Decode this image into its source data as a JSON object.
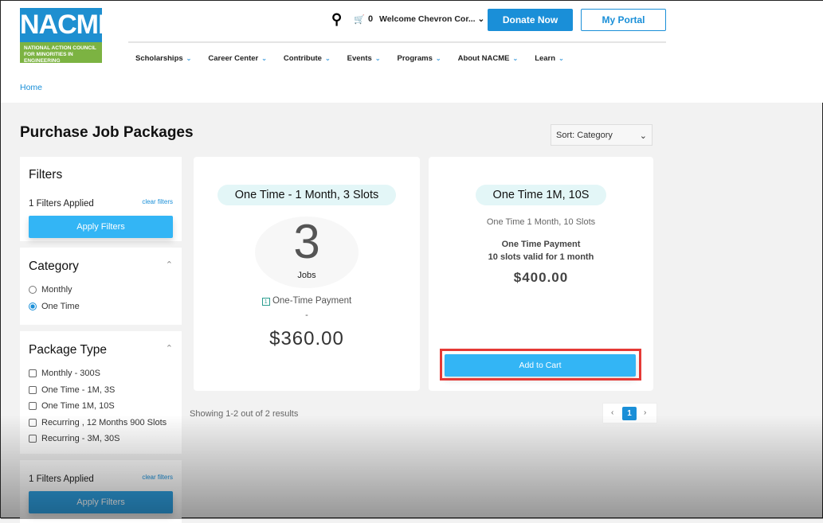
{
  "header": {
    "logo_text": "NACME",
    "logo_subtitle": "NATIONAL ACTION COUNCIL FOR MINORITIES IN ENGINEERING",
    "cart_count": "0",
    "welcome": "Welcome Chevron Cor...",
    "donate": "Donate Now",
    "portal": "My Portal",
    "nav": [
      "Scholarships",
      "Career Center",
      "Contribute",
      "Events",
      "Programs",
      "About NACME",
      "Learn"
    ]
  },
  "breadcrumb": "Home",
  "page_title": "Purchase Job Packages",
  "sort": "Sort: Category",
  "filters": {
    "title": "Filters",
    "applied": "1 Filters Applied",
    "clear": "clear filters",
    "apply": "Apply Filters",
    "category_title": "Category",
    "category": [
      {
        "label": "Monthly",
        "checked": false
      },
      {
        "label": "One Time",
        "checked": true
      }
    ],
    "package_title": "Package Type",
    "packages": [
      "Monthly - 300S",
      "One Time - 1M, 3S",
      "One Time 1M, 10S",
      "Recurring , 12 Months 900 Slots",
      "Recurring - 3M, 30S"
    ]
  },
  "cards": [
    {
      "title": "One Time - 1 Month, 3 Slots",
      "count": "3",
      "count_label": "Jobs",
      "payment": "One-Time Payment",
      "dash": "-",
      "price": "$360.00"
    },
    {
      "title": "One Time 1M, 10S",
      "subtitle": "One Time 1 Month, 10 Slots",
      "payment": "One Time Payment",
      "desc": "10 slots valid for 1 month",
      "price": "$400.00",
      "button": "Add to Cart"
    }
  ],
  "results": "Showing 1-2 out of 2 results",
  "pagination": {
    "current": "1"
  },
  "colors": {
    "accent": "#1a8fd8",
    "button": "#33b5f5",
    "highlight": "#e53935"
  }
}
